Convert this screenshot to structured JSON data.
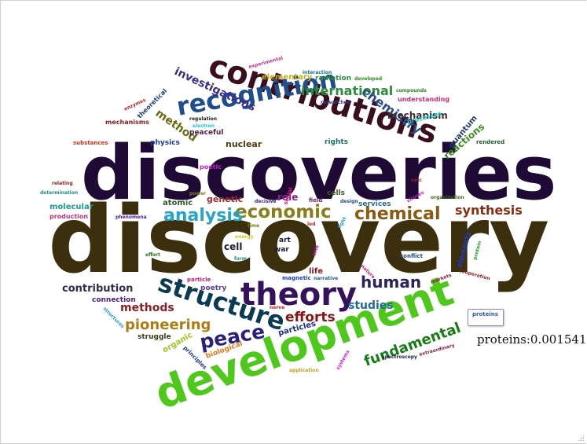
{
  "tooltip": {
    "label": "proteins"
  },
  "hover_readout": "proteins:0.00154106",
  "words": [
    {
      "text": "discovery",
      "color": "#3b2f0e"
    },
    {
      "text": "discoveries",
      "color": "#1f0a36"
    },
    {
      "text": "development",
      "color": "#4fc81c"
    },
    {
      "text": "contributions",
      "color": "#3a0d1f"
    },
    {
      "text": "recognition",
      "color": "#1e4e8c"
    },
    {
      "text": "structure",
      "color": "#0b3b52"
    },
    {
      "text": "theory",
      "color": "#35125e"
    },
    {
      "text": "economic",
      "color": "#8a7d1a"
    },
    {
      "text": "chemical",
      "color": "#8a5a10"
    },
    {
      "text": "analysis",
      "color": "#25a6c8"
    },
    {
      "text": "peace",
      "color": "#2a1f7a"
    },
    {
      "text": "human",
      "color": "#2a2360"
    },
    {
      "text": "fundamental",
      "color": "#167c16"
    },
    {
      "text": "pioneering",
      "color": "#b07c10"
    },
    {
      "text": "efforts",
      "color": "#8a1414"
    },
    {
      "text": "synthesis",
      "color": "#8a2c10"
    },
    {
      "text": "international",
      "color": "#2c8c3c"
    },
    {
      "text": "chemistry",
      "color": "#2c4c8c"
    },
    {
      "text": "investigations",
      "color": "#3c2c8c"
    },
    {
      "text": "method",
      "color": "#6a6a10"
    },
    {
      "text": "methods",
      "color": "#8c1f2a"
    },
    {
      "text": "studies",
      "color": "#1f6c9c"
    },
    {
      "text": "contribution",
      "color": "#2c2c4c"
    },
    {
      "text": "mechanism",
      "color": "#3c2c2c"
    },
    {
      "text": "reactions",
      "color": "#3c8c1f"
    },
    {
      "text": "quantum",
      "color": "#1f3c6c"
    },
    {
      "text": "nuclear",
      "color": "#4c3c0c"
    },
    {
      "text": "role",
      "color": "#8c1f8c"
    },
    {
      "text": "genetic",
      "color": "#9c2c2c"
    },
    {
      "text": "atomic",
      "color": "#2c5c2c"
    },
    {
      "text": "cells",
      "color": "#3c5c1c"
    },
    {
      "text": "life",
      "color": "#7c1c1c"
    },
    {
      "text": "services",
      "color": "#2c6c9c"
    },
    {
      "text": "cell",
      "color": "#1c1c3c"
    },
    {
      "text": "molecular",
      "color": "#1c9c8c"
    },
    {
      "text": "production",
      "color": "#c8307c"
    },
    {
      "text": "physics",
      "color": "#1c3c9c"
    },
    {
      "text": "peaceful",
      "color": "#4c1c4c"
    },
    {
      "text": "rights",
      "color": "#1c6c6c"
    },
    {
      "text": "organic",
      "color": "#9cc81c"
    },
    {
      "text": "struggle",
      "color": "#3c3c1c"
    },
    {
      "text": "poetry",
      "color": "#5c3c9c"
    },
    {
      "text": "connection",
      "color": "#4c1c7c"
    },
    {
      "text": "particles",
      "color": "#1c2c8c"
    },
    {
      "text": "biological",
      "color": "#e0781c"
    },
    {
      "text": "elementary",
      "color": "#c8b01c"
    },
    {
      "text": "radiation",
      "color": "#2c8c4c"
    },
    {
      "text": "understanding",
      "color": "#c8307c"
    },
    {
      "text": "processes",
      "color": "#1cc8c8"
    },
    {
      "text": "theoretical",
      "color": "#1c3c7c"
    },
    {
      "text": "mechanisms",
      "color": "#8c1c1c"
    },
    {
      "text": "substances",
      "color": "#c8301c"
    },
    {
      "text": "regulation",
      "color": "#1c1c1c"
    },
    {
      "text": "electron",
      "color": "#1cc8c8"
    },
    {
      "text": "rendered",
      "color": "#1c5c2c"
    },
    {
      "text": "experimental",
      "color": "#c8308c"
    },
    {
      "text": "interaction",
      "color": "#1c6c8c"
    },
    {
      "text": "developed",
      "color": "#2c8c1c"
    },
    {
      "text": "compounds",
      "color": "#1c8c1c"
    },
    {
      "text": "researches",
      "color": "#3c3c8c"
    },
    {
      "text": "enzymes",
      "color": "#c81c1c"
    },
    {
      "text": "poetic",
      "color": "#c81cc8"
    },
    {
      "text": "relating",
      "color": "#8c1c1c"
    },
    {
      "text": "determination",
      "color": "#1c8c8c"
    },
    {
      "text": "phenomena",
      "color": "#4c1c9c"
    },
    {
      "text": "power",
      "color": "#7c7c1c"
    },
    {
      "text": "decisive",
      "color": "#3c1c8c"
    },
    {
      "text": "field",
      "color": "#6c1c6c"
    },
    {
      "text": "social",
      "color": "#e01c7c"
    },
    {
      "text": "design",
      "color": "#1c4c8c"
    },
    {
      "text": "epic",
      "color": "#9c1c1c"
    },
    {
      "text": "viruses",
      "color": "#c81cc8"
    },
    {
      "text": "organization",
      "color": "#3c6c1c"
    },
    {
      "text": "led",
      "color": "#c81c1c"
    },
    {
      "text": "light",
      "color": "#1c9cc8"
    },
    {
      "text": "energy",
      "color": "#c8c81c"
    },
    {
      "text": "art",
      "color": "#1c1c3c"
    },
    {
      "text": "war",
      "color": "#1c1c3c"
    },
    {
      "text": "effort",
      "color": "#2c6c1c"
    },
    {
      "text": "form",
      "color": "#1c8c8c"
    },
    {
      "text": "acid",
      "color": "#c81cc8"
    },
    {
      "text": "conflict",
      "color": "#1c4c8c"
    },
    {
      "text": "elements",
      "color": "#1c3cc8"
    },
    {
      "text": "protein",
      "color": "#1c9c1c"
    },
    {
      "text": "cooperation",
      "color": "#8c1c1c"
    },
    {
      "text": "particle",
      "color": "#c81c7c"
    },
    {
      "text": "magnetic",
      "color": "#1c3cc8"
    },
    {
      "text": "narrative",
      "color": "#1c5c8c"
    },
    {
      "text": "markets",
      "color": "#8c1c3c"
    },
    {
      "text": "nerve",
      "color": "#c81c1c"
    },
    {
      "text": "nature",
      "color": "#c81c7c"
    },
    {
      "text": "structures",
      "color": "#1c9cc8"
    },
    {
      "text": "principles",
      "color": "#1c3c7c"
    },
    {
      "text": "systems",
      "color": "#c81cc8"
    },
    {
      "text": "application",
      "color": "#c8a01c"
    },
    {
      "text": "spectroscopy",
      "color": "#1c1c3c"
    },
    {
      "text": "extraordinary",
      "color": "#7c1c3c"
    },
    {
      "text": "time",
      "color": "#7c7c1c"
    }
  ]
}
